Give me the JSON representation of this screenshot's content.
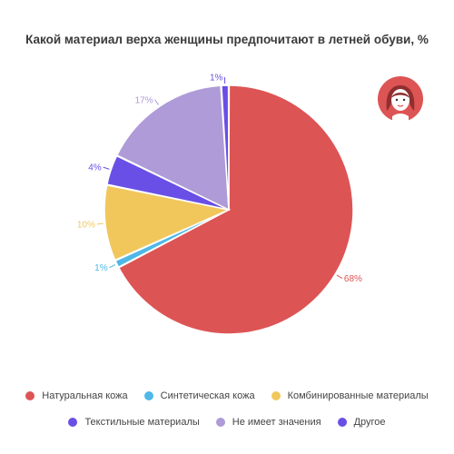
{
  "chart_data": {
    "type": "pie",
    "title": "Какой материал верха женщины предпочитают в летней обуви, %",
    "categories": [
      "Натуральная кожа",
      "Синтетическая кожа",
      "Комбинированные материалы",
      "Текстильные материалы",
      "Не имеет значения",
      "Другое"
    ],
    "values": [
      68,
      1,
      10,
      4,
      17,
      1
    ],
    "value_labels": [
      "68%",
      "1%",
      "10%",
      "4%",
      "17%",
      "1%"
    ],
    "colors": [
      "#dd5455",
      "#4fb8e6",
      "#f1c75c",
      "#6a4fe6",
      "#ae9bd7",
      "#6a4fe6"
    ],
    "legend_position": "bottom"
  },
  "avatar": {
    "icon": "woman-face-icon",
    "color": "#dd5455"
  }
}
